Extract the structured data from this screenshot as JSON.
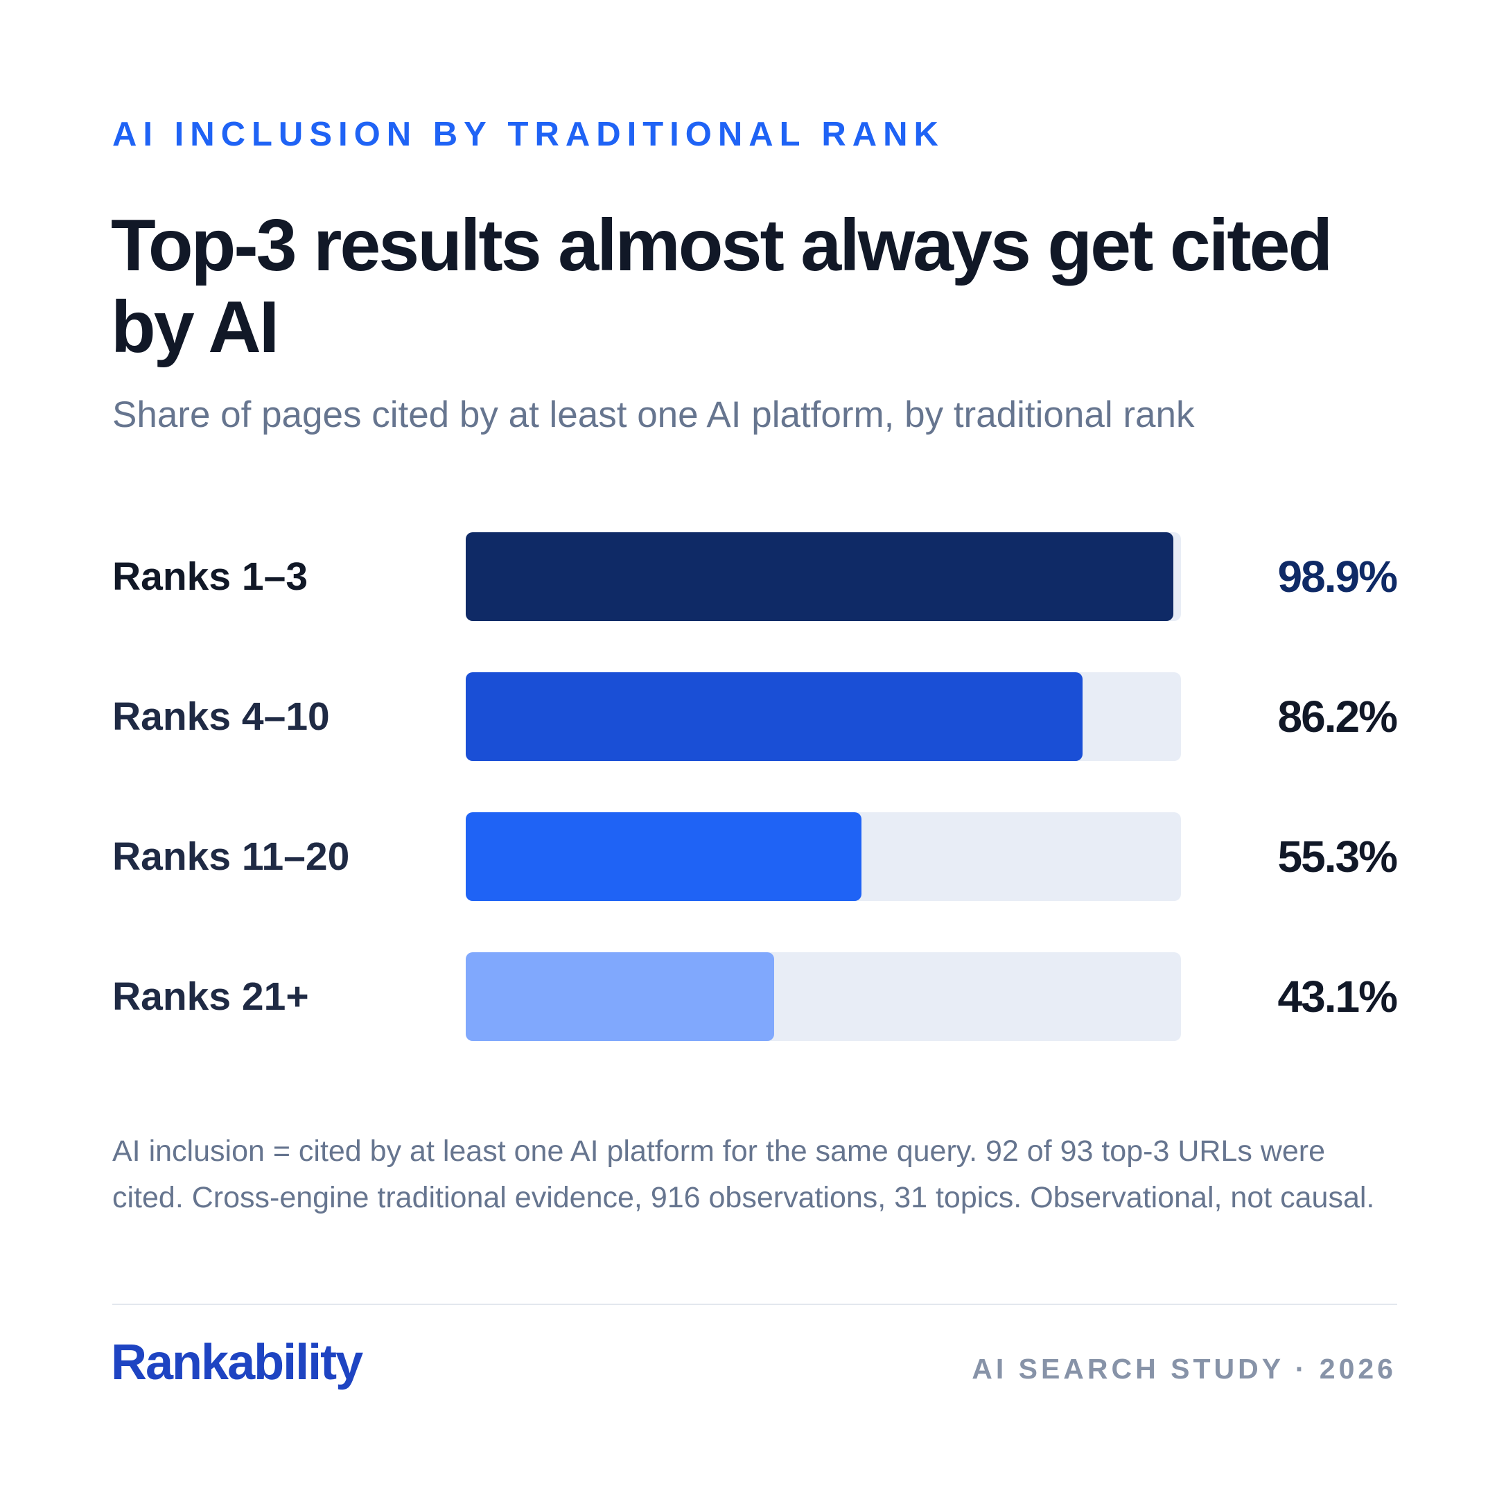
{
  "header": {
    "kicker": "AI INCLUSION BY TRADITIONAL RANK",
    "title": "Top-3 results almost always get cited by AI",
    "subtitle": "Share of pages cited by at least one AI platform, by traditional rank"
  },
  "chart_data": {
    "type": "bar",
    "orientation": "horizontal",
    "categories": [
      "Ranks 1–3",
      "Ranks 4–10",
      "Ranks 11–20",
      "Ranks 21+"
    ],
    "values": [
      98.9,
      86.2,
      55.3,
      43.1
    ],
    "value_labels": [
      "98.9%",
      "86.2%",
      "55.3%",
      "43.1%"
    ],
    "xlim": [
      0,
      100
    ],
    "colors": [
      "#0f2a66",
      "#1a4fd6",
      "#1f63f5",
      "#80a8fd"
    ],
    "track_color": "#e8edf6",
    "grid": false,
    "legend": "none"
  },
  "footer": {
    "note": "AI inclusion = cited by at least one AI platform for the same query. 92 of 93 top-3 URLs were cited. Cross-engine traditional evidence, 916 observations, 31 topics. Observational, not causal.",
    "brand": "Rankability",
    "study": "AI SEARCH STUDY · 2026"
  }
}
